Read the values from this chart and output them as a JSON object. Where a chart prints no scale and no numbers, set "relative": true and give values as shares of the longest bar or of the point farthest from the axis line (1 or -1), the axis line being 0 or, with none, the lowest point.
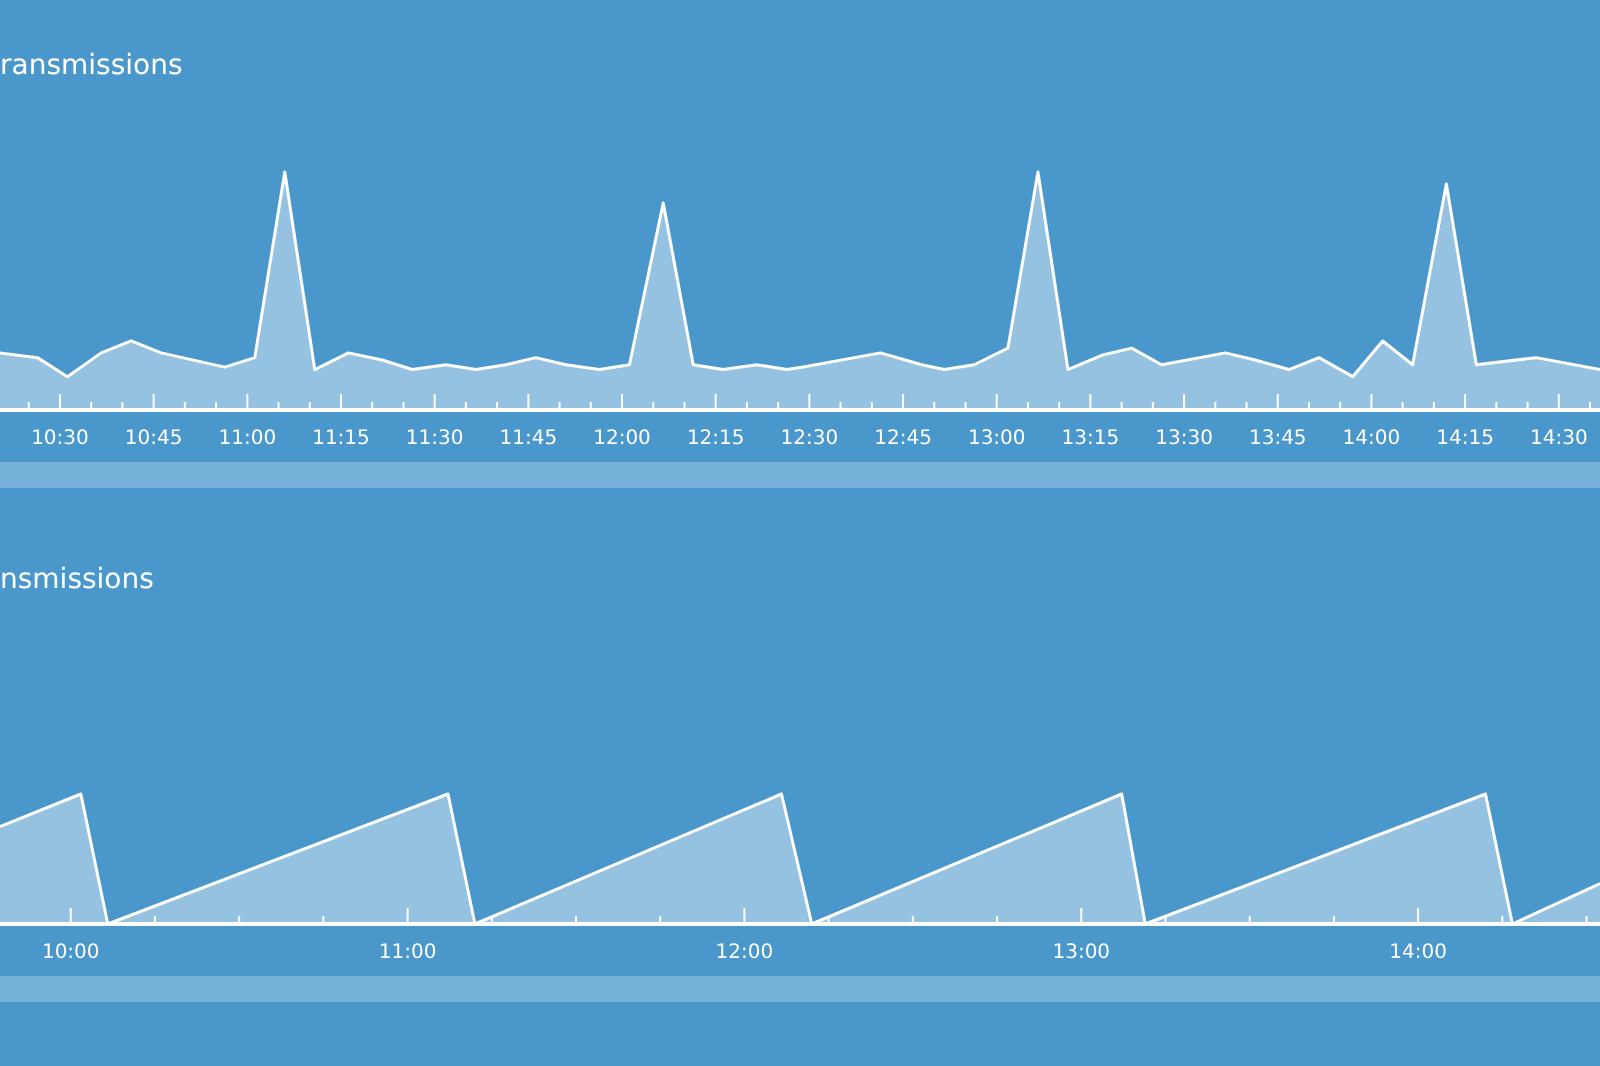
{
  "chart_data": [
    {
      "type": "area",
      "title": "ransmissions",
      "relative": true,
      "xlim": [
        10.34,
        14.61
      ],
      "x": [
        10.34,
        10.44,
        10.52,
        10.61,
        10.69,
        10.77,
        10.94,
        11.02,
        11.1,
        11.18,
        11.27,
        11.36,
        11.44,
        11.53,
        11.61,
        11.69,
        11.77,
        11.85,
        11.94,
        12.02,
        12.11,
        12.19,
        12.27,
        12.36,
        12.44,
        12.48,
        12.69,
        12.8,
        12.86,
        12.94,
        13.03,
        13.11,
        13.19,
        13.28,
        13.36,
        13.44,
        13.61,
        13.69,
        13.78,
        13.86,
        13.95,
        14.03,
        14.11,
        14.2,
        14.28,
        14.44,
        14.61
      ],
      "series": [
        {
          "color": "#96c2e1",
          "values": [
            0.24,
            0.22,
            0.14,
            0.24,
            0.29,
            0.24,
            0.18,
            0.22,
            1,
            0.17,
            0.24,
            0.21,
            0.17,
            0.19,
            0.17,
            0.19,
            0.22,
            0.19,
            0.17,
            0.19,
            0.87,
            0.19,
            0.17,
            0.19,
            0.17,
            0.18,
            0.24,
            0.19,
            0.17,
            0.19,
            0.26,
            1,
            0.17,
            0.23,
            0.26,
            0.19,
            0.24,
            0.21,
            0.17,
            0.22,
            0.14,
            0.29,
            0.19,
            0.95,
            0.19,
            0.22,
            0.17
          ]
        }
      ],
      "xticks": [
        {
          "value": 10.4167,
          "label": null
        },
        {
          "value": 10.5,
          "label": "10:30"
        },
        {
          "value": 10.5833,
          "label": null
        },
        {
          "value": 10.6667,
          "label": null
        },
        {
          "value": 10.75,
          "label": "10:45"
        },
        {
          "value": 10.8333,
          "label": null
        },
        {
          "value": 10.9167,
          "label": null
        },
        {
          "value": 11,
          "label": "11:00"
        },
        {
          "value": 11.0833,
          "label": null
        },
        {
          "value": 11.1667,
          "label": null
        },
        {
          "value": 11.25,
          "label": "11:15"
        },
        {
          "value": 11.3333,
          "label": null
        },
        {
          "value": 11.4167,
          "label": null
        },
        {
          "value": 11.5,
          "label": "11:30"
        },
        {
          "value": 11.5833,
          "label": null
        },
        {
          "value": 11.6667,
          "label": null
        },
        {
          "value": 11.75,
          "label": "11:45"
        },
        {
          "value": 11.8333,
          "label": null
        },
        {
          "value": 11.9167,
          "label": null
        },
        {
          "value": 12,
          "label": "12:00"
        },
        {
          "value": 12.0833,
          "label": null
        },
        {
          "value": 12.1667,
          "label": null
        },
        {
          "value": 12.25,
          "label": "12:15"
        },
        {
          "value": 12.3333,
          "label": null
        },
        {
          "value": 12.4167,
          "label": null
        },
        {
          "value": 12.5,
          "label": "12:30"
        },
        {
          "value": 12.5833,
          "label": null
        },
        {
          "value": 12.6667,
          "label": null
        },
        {
          "value": 12.75,
          "label": "12:45"
        },
        {
          "value": 12.8333,
          "label": null
        },
        {
          "value": 12.9167,
          "label": null
        },
        {
          "value": 13,
          "label": "13:00"
        },
        {
          "value": 13.0833,
          "label": null
        },
        {
          "value": 13.1667,
          "label": null
        },
        {
          "value": 13.25,
          "label": "13:15"
        },
        {
          "value": 13.3333,
          "label": null
        },
        {
          "value": 13.4167,
          "label": null
        },
        {
          "value": 13.5,
          "label": "13:30"
        },
        {
          "value": 13.5833,
          "label": null
        },
        {
          "value": 13.6667,
          "label": null
        },
        {
          "value": 13.75,
          "label": "13:45"
        },
        {
          "value": 13.8333,
          "label": null
        },
        {
          "value": 13.9167,
          "label": null
        },
        {
          "value": 14,
          "label": "14:00"
        },
        {
          "value": 14.0833,
          "label": null
        },
        {
          "value": 14.1667,
          "label": null
        },
        {
          "value": 14.25,
          "label": "14:15"
        },
        {
          "value": 14.3333,
          "label": null
        },
        {
          "value": 14.4167,
          "label": null
        },
        {
          "value": 14.5,
          "label": "14:30"
        },
        {
          "value": 14.5833,
          "label": null
        }
      ]
    },
    {
      "type": "area",
      "title": "nsmissions",
      "relative": true,
      "xlim": [
        9.79,
        14.54
      ],
      "x": [
        9.79,
        10.03,
        10.11,
        11.12,
        11.2,
        12.11,
        12.2,
        13.12,
        13.19,
        14.2,
        14.28,
        14.54
      ],
      "series": [
        {
          "color": "#96c2e1",
          "values": [
            0.75,
            1,
            0,
            1,
            0,
            1,
            0,
            1,
            0,
            1,
            0,
            0.31
          ]
        }
      ],
      "xticks": [
        {
          "value": 10,
          "label": "10:00"
        },
        {
          "value": 10.25,
          "label": null
        },
        {
          "value": 10.5,
          "label": null
        },
        {
          "value": 10.75,
          "label": null
        },
        {
          "value": 11,
          "label": "11:00"
        },
        {
          "value": 11.25,
          "label": null
        },
        {
          "value": 11.5,
          "label": null
        },
        {
          "value": 11.75,
          "label": null
        },
        {
          "value": 12,
          "label": "12:00"
        },
        {
          "value": 12.25,
          "label": null
        },
        {
          "value": 12.5,
          "label": null
        },
        {
          "value": 12.75,
          "label": null
        },
        {
          "value": 13,
          "label": "13:00"
        },
        {
          "value": 13.25,
          "label": null
        },
        {
          "value": 13.5,
          "label": null
        },
        {
          "value": 13.75,
          "label": null
        },
        {
          "value": 14,
          "label": "14:00"
        },
        {
          "value": 14.25,
          "label": null
        },
        {
          "value": 14.5,
          "label": null
        }
      ]
    }
  ]
}
